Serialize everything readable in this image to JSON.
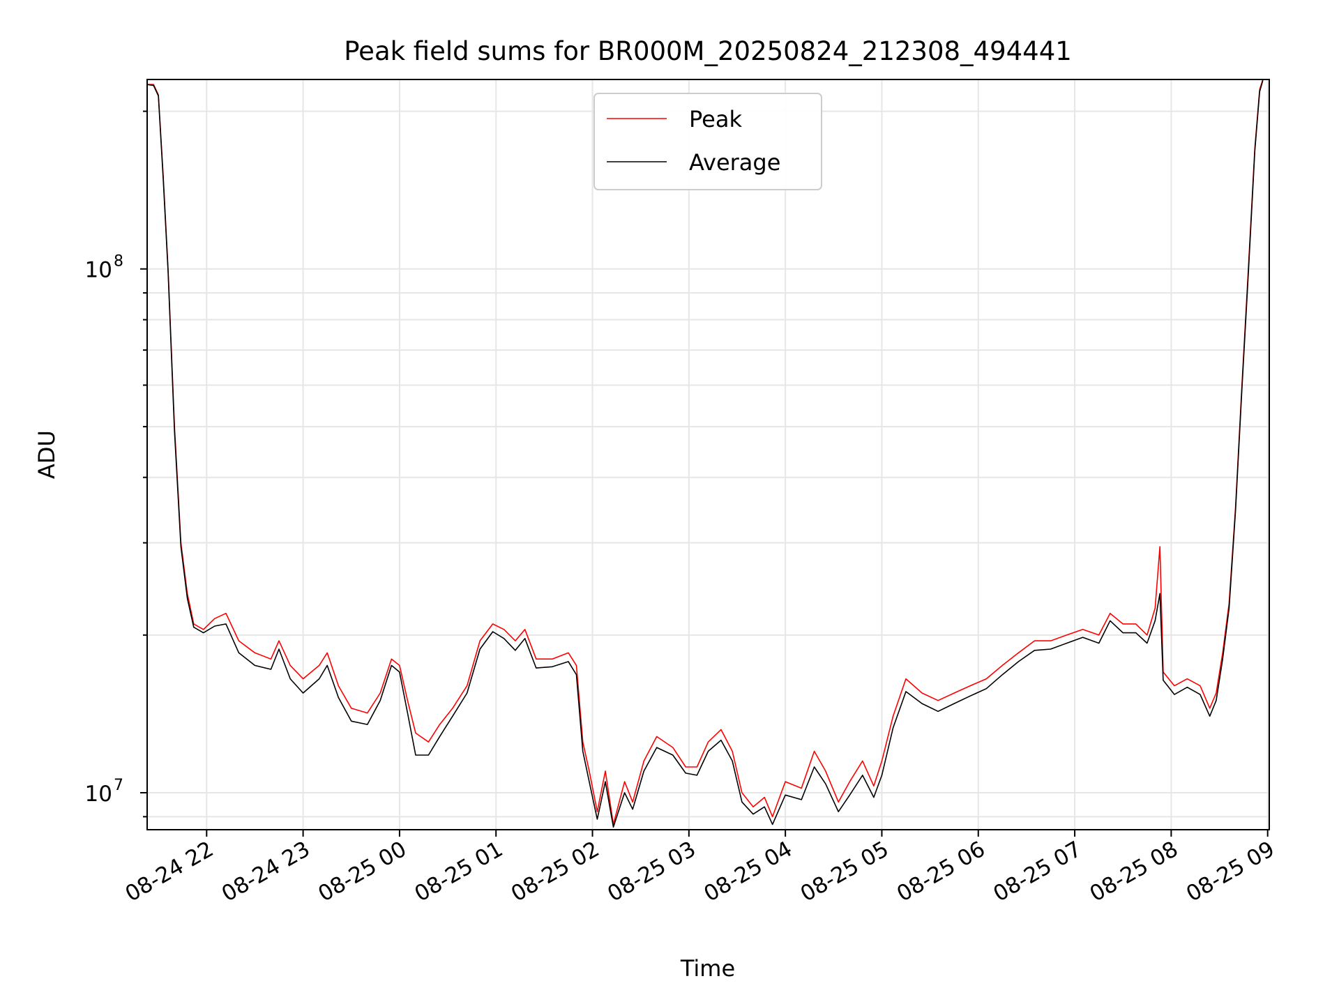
{
  "chart_data": {
    "type": "line",
    "title": "Peak field sums for BR000M_20250824_212308_494441",
    "xlabel": "Time",
    "ylabel": "ADU",
    "xlim": [
      "2025-08-24 21:23",
      "2025-08-25 09:01"
    ],
    "ylim": [
      8500000,
      230000000
    ],
    "yscale": "log",
    "grid": true,
    "legend_position": "top-center",
    "x_ticks": [
      {
        "label": "08-24 22",
        "time": "2025-08-24 22:00"
      },
      {
        "label": "08-24 23",
        "time": "2025-08-24 23:00"
      },
      {
        "label": "08-25 00",
        "time": "2025-08-25 00:00"
      },
      {
        "label": "08-25 01",
        "time": "2025-08-25 01:00"
      },
      {
        "label": "08-25 02",
        "time": "2025-08-25 02:00"
      },
      {
        "label": "08-25 03",
        "time": "2025-08-25 03:00"
      },
      {
        "label": "08-25 04",
        "time": "2025-08-25 04:00"
      },
      {
        "label": "08-25 05",
        "time": "2025-08-25 05:00"
      },
      {
        "label": "08-25 06",
        "time": "2025-08-25 06:00"
      },
      {
        "label": "08-25 07",
        "time": "2025-08-25 07:00"
      },
      {
        "label": "08-25 08",
        "time": "2025-08-25 08:00"
      },
      {
        "label": "08-25 09",
        "time": "2025-08-25 09:00"
      }
    ],
    "y_ticks": [
      {
        "label": "10",
        "exp": "7",
        "value": 10000000
      },
      {
        "label": "10",
        "exp": "8",
        "value": 100000000
      }
    ],
    "series": [
      {
        "name": "Peak",
        "color": "#ff0000",
        "points": [
          [
            "2025-08-24 21:23",
            225000000
          ],
          [
            "2025-08-24 21:27",
            225000000
          ],
          [
            "2025-08-24 21:30",
            215000000
          ],
          [
            "2025-08-24 21:33",
            150000000
          ],
          [
            "2025-08-24 21:36",
            100000000
          ],
          [
            "2025-08-24 21:40",
            50000000
          ],
          [
            "2025-08-24 21:44",
            30000000
          ],
          [
            "2025-08-24 21:48",
            24000000
          ],
          [
            "2025-08-24 21:52",
            21000000
          ],
          [
            "2025-08-24 21:58",
            20500000
          ],
          [
            "2025-08-24 22:05",
            21500000
          ],
          [
            "2025-08-24 22:12",
            22000000
          ],
          [
            "2025-08-24 22:20",
            19500000
          ],
          [
            "2025-08-24 22:30",
            18500000
          ],
          [
            "2025-08-24 22:40",
            18000000
          ],
          [
            "2025-08-24 22:45",
            19500000
          ],
          [
            "2025-08-24 22:52",
            17500000
          ],
          [
            "2025-08-24 23:00",
            16500000
          ],
          [
            "2025-08-24 23:10",
            17500000
          ],
          [
            "2025-08-24 23:15",
            18500000
          ],
          [
            "2025-08-24 23:22",
            16000000
          ],
          [
            "2025-08-24 23:30",
            14500000
          ],
          [
            "2025-08-24 23:40",
            14200000
          ],
          [
            "2025-08-24 23:48",
            15500000
          ],
          [
            "2025-08-24 23:55",
            18000000
          ],
          [
            "2025-08-25 00:00",
            17500000
          ],
          [
            "2025-08-25 00:05",
            15000000
          ],
          [
            "2025-08-25 00:10",
            13000000
          ],
          [
            "2025-08-25 00:18",
            12500000
          ],
          [
            "2025-08-25 00:25",
            13500000
          ],
          [
            "2025-08-25 00:33",
            14500000
          ],
          [
            "2025-08-25 00:42",
            16000000
          ],
          [
            "2025-08-25 00:50",
            19500000
          ],
          [
            "2025-08-25 00:58",
            21000000
          ],
          [
            "2025-08-25 01:05",
            20500000
          ],
          [
            "2025-08-25 01:12",
            19500000
          ],
          [
            "2025-08-25 01:18",
            20500000
          ],
          [
            "2025-08-25 01:25",
            18000000
          ],
          [
            "2025-08-25 01:35",
            18000000
          ],
          [
            "2025-08-25 01:45",
            18500000
          ],
          [
            "2025-08-25 01:50",
            17500000
          ],
          [
            "2025-08-25 01:54",
            12500000
          ],
          [
            "2025-08-25 01:58",
            11000000
          ],
          [
            "2025-08-25 02:03",
            9200000
          ],
          [
            "2025-08-25 02:08",
            11000000
          ],
          [
            "2025-08-25 02:13",
            8700000
          ],
          [
            "2025-08-25 02:20",
            10500000
          ],
          [
            "2025-08-25 02:25",
            9600000
          ],
          [
            "2025-08-25 02:32",
            11500000
          ],
          [
            "2025-08-25 02:40",
            12800000
          ],
          [
            "2025-08-25 02:50",
            12200000
          ],
          [
            "2025-08-25 02:58",
            11200000
          ],
          [
            "2025-08-25 03:05",
            11200000
          ],
          [
            "2025-08-25 03:12",
            12500000
          ],
          [
            "2025-08-25 03:20",
            13200000
          ],
          [
            "2025-08-25 03:27",
            12000000
          ],
          [
            "2025-08-25 03:33",
            10000000
          ],
          [
            "2025-08-25 03:40",
            9400000
          ],
          [
            "2025-08-25 03:47",
            9800000
          ],
          [
            "2025-08-25 03:52",
            9000000
          ],
          [
            "2025-08-25 04:00",
            10500000
          ],
          [
            "2025-08-25 04:10",
            10200000
          ],
          [
            "2025-08-25 04:18",
            12000000
          ],
          [
            "2025-08-25 04:25",
            11000000
          ],
          [
            "2025-08-25 04:33",
            9600000
          ],
          [
            "2025-08-25 04:40",
            10500000
          ],
          [
            "2025-08-25 04:48",
            11500000
          ],
          [
            "2025-08-25 04:55",
            10300000
          ],
          [
            "2025-08-25 05:00",
            11500000
          ],
          [
            "2025-08-25 05:07",
            14000000
          ],
          [
            "2025-08-25 05:15",
            16500000
          ],
          [
            "2025-08-25 05:25",
            15500000
          ],
          [
            "2025-08-25 05:35",
            15000000
          ],
          [
            "2025-08-25 05:45",
            15500000
          ],
          [
            "2025-08-25 05:55",
            16000000
          ],
          [
            "2025-08-25 06:05",
            16500000
          ],
          [
            "2025-08-25 06:15",
            17500000
          ],
          [
            "2025-08-25 06:25",
            18500000
          ],
          [
            "2025-08-25 06:35",
            19500000
          ],
          [
            "2025-08-25 06:45",
            19500000
          ],
          [
            "2025-08-25 06:55",
            20000000
          ],
          [
            "2025-08-25 07:05",
            20500000
          ],
          [
            "2025-08-25 07:15",
            20000000
          ],
          [
            "2025-08-25 07:22",
            22000000
          ],
          [
            "2025-08-25 07:30",
            21000000
          ],
          [
            "2025-08-25 07:38",
            21000000
          ],
          [
            "2025-08-25 07:45",
            20000000
          ],
          [
            "2025-08-25 07:50",
            22500000
          ],
          [
            "2025-08-25 07:53",
            29500000
          ],
          [
            "2025-08-25 07:55",
            17000000
          ],
          [
            "2025-08-25 08:02",
            16000000
          ],
          [
            "2025-08-25 08:10",
            16500000
          ],
          [
            "2025-08-25 08:18",
            16000000
          ],
          [
            "2025-08-25 08:24",
            14500000
          ],
          [
            "2025-08-25 08:28",
            15500000
          ],
          [
            "2025-08-25 08:32",
            18500000
          ],
          [
            "2025-08-25 08:36",
            23000000
          ],
          [
            "2025-08-25 08:40",
            35000000
          ],
          [
            "2025-08-25 08:44",
            60000000
          ],
          [
            "2025-08-25 08:48",
            100000000
          ],
          [
            "2025-08-25 08:52",
            170000000
          ],
          [
            "2025-08-25 08:55",
            220000000
          ],
          [
            "2025-08-25 08:57",
            230000000
          ]
        ]
      },
      {
        "name": "Average",
        "color": "#000000",
        "points": [
          [
            "2025-08-24 21:23",
            225000000
          ],
          [
            "2025-08-24 21:27",
            224000000
          ],
          [
            "2025-08-24 21:30",
            214000000
          ],
          [
            "2025-08-24 21:33",
            148000000
          ],
          [
            "2025-08-24 21:36",
            99000000
          ],
          [
            "2025-08-24 21:40",
            49000000
          ],
          [
            "2025-08-24 21:44",
            29500000
          ],
          [
            "2025-08-24 21:48",
            23500000
          ],
          [
            "2025-08-24 21:52",
            20700000
          ],
          [
            "2025-08-24 21:58",
            20200000
          ],
          [
            "2025-08-24 22:05",
            20800000
          ],
          [
            "2025-08-24 22:12",
            21000000
          ],
          [
            "2025-08-24 22:20",
            18500000
          ],
          [
            "2025-08-24 22:30",
            17500000
          ],
          [
            "2025-08-24 22:40",
            17200000
          ],
          [
            "2025-08-24 22:45",
            18800000
          ],
          [
            "2025-08-24 22:52",
            16500000
          ],
          [
            "2025-08-24 23:00",
            15500000
          ],
          [
            "2025-08-24 23:10",
            16500000
          ],
          [
            "2025-08-24 23:15",
            17500000
          ],
          [
            "2025-08-24 23:22",
            15200000
          ],
          [
            "2025-08-24 23:30",
            13700000
          ],
          [
            "2025-08-24 23:40",
            13500000
          ],
          [
            "2025-08-24 23:48",
            15000000
          ],
          [
            "2025-08-24 23:55",
            17500000
          ],
          [
            "2025-08-25 00:00",
            17000000
          ],
          [
            "2025-08-25 00:05",
            14200000
          ],
          [
            "2025-08-25 00:10",
            11800000
          ],
          [
            "2025-08-25 00:18",
            11800000
          ],
          [
            "2025-08-25 00:25",
            12800000
          ],
          [
            "2025-08-25 00:33",
            14000000
          ],
          [
            "2025-08-25 00:42",
            15500000
          ],
          [
            "2025-08-25 00:50",
            18800000
          ],
          [
            "2025-08-25 00:58",
            20300000
          ],
          [
            "2025-08-25 01:05",
            19700000
          ],
          [
            "2025-08-25 01:12",
            18700000
          ],
          [
            "2025-08-25 01:18",
            19700000
          ],
          [
            "2025-08-25 01:25",
            17300000
          ],
          [
            "2025-08-25 01:35",
            17400000
          ],
          [
            "2025-08-25 01:45",
            17800000
          ],
          [
            "2025-08-25 01:50",
            16800000
          ],
          [
            "2025-08-25 01:54",
            12000000
          ],
          [
            "2025-08-25 01:58",
            10500000
          ],
          [
            "2025-08-25 02:03",
            8900000
          ],
          [
            "2025-08-25 02:08",
            10500000
          ],
          [
            "2025-08-25 02:13",
            8600000
          ],
          [
            "2025-08-25 02:20",
            10000000
          ],
          [
            "2025-08-25 02:25",
            9300000
          ],
          [
            "2025-08-25 02:32",
            11000000
          ],
          [
            "2025-08-25 02:40",
            12200000
          ],
          [
            "2025-08-25 02:50",
            11800000
          ],
          [
            "2025-08-25 02:58",
            10900000
          ],
          [
            "2025-08-25 03:05",
            10800000
          ],
          [
            "2025-08-25 03:12",
            12000000
          ],
          [
            "2025-08-25 03:20",
            12600000
          ],
          [
            "2025-08-25 03:27",
            11500000
          ],
          [
            "2025-08-25 03:33",
            9600000
          ],
          [
            "2025-08-25 03:40",
            9100000
          ],
          [
            "2025-08-25 03:47",
            9400000
          ],
          [
            "2025-08-25 03:52",
            8700000
          ],
          [
            "2025-08-25 04:00",
            9900000
          ],
          [
            "2025-08-25 04:10",
            9700000
          ],
          [
            "2025-08-25 04:18",
            11200000
          ],
          [
            "2025-08-25 04:25",
            10400000
          ],
          [
            "2025-08-25 04:33",
            9200000
          ],
          [
            "2025-08-25 04:40",
            9900000
          ],
          [
            "2025-08-25 04:48",
            10800000
          ],
          [
            "2025-08-25 04:55",
            9800000
          ],
          [
            "2025-08-25 05:00",
            10800000
          ],
          [
            "2025-08-25 05:07",
            13300000
          ],
          [
            "2025-08-25 05:15",
            15600000
          ],
          [
            "2025-08-25 05:25",
            14800000
          ],
          [
            "2025-08-25 05:35",
            14300000
          ],
          [
            "2025-08-25 05:45",
            14800000
          ],
          [
            "2025-08-25 05:55",
            15300000
          ],
          [
            "2025-08-25 06:05",
            15800000
          ],
          [
            "2025-08-25 06:15",
            16800000
          ],
          [
            "2025-08-25 06:25",
            17800000
          ],
          [
            "2025-08-25 06:35",
            18700000
          ],
          [
            "2025-08-25 06:45",
            18800000
          ],
          [
            "2025-08-25 06:55",
            19300000
          ],
          [
            "2025-08-25 07:05",
            19800000
          ],
          [
            "2025-08-25 07:15",
            19300000
          ],
          [
            "2025-08-25 07:22",
            21300000
          ],
          [
            "2025-08-25 07:30",
            20200000
          ],
          [
            "2025-08-25 07:38",
            20200000
          ],
          [
            "2025-08-25 07:45",
            19300000
          ],
          [
            "2025-08-25 07:50",
            21300000
          ],
          [
            "2025-08-25 07:53",
            24000000
          ],
          [
            "2025-08-25 07:55",
            16400000
          ],
          [
            "2025-08-25 08:02",
            15400000
          ],
          [
            "2025-08-25 08:10",
            15900000
          ],
          [
            "2025-08-25 08:18",
            15400000
          ],
          [
            "2025-08-25 08:24",
            14000000
          ],
          [
            "2025-08-25 08:28",
            15000000
          ],
          [
            "2025-08-25 08:32",
            18000000
          ],
          [
            "2025-08-25 08:36",
            22500000
          ],
          [
            "2025-08-25 08:40",
            34500000
          ],
          [
            "2025-08-25 08:44",
            59000000
          ],
          [
            "2025-08-25 08:48",
            98000000
          ],
          [
            "2025-08-25 08:52",
            168000000
          ],
          [
            "2025-08-25 08:55",
            218000000
          ],
          [
            "2025-08-25 08:57",
            229000000
          ]
        ]
      }
    ]
  }
}
